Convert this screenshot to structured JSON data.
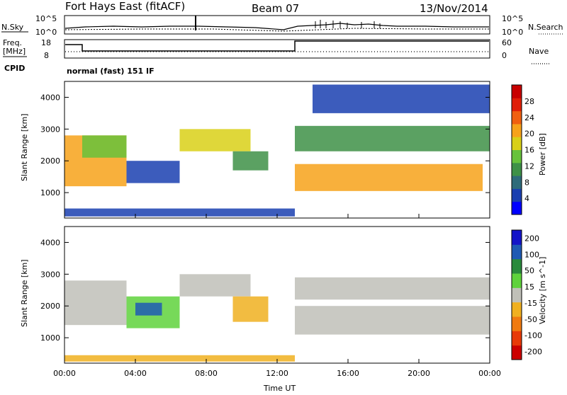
{
  "header": {
    "title": "Fort Hays East (fitACF)",
    "beam": "Beam 07",
    "date": "13/Nov/2014"
  },
  "top_panel": {
    "left_label": "N.Sky",
    "right_label": "N.Search",
    "left_ticks": [
      "10^5",
      "10^0"
    ],
    "right_ticks": [
      "10^5",
      "10^0"
    ]
  },
  "freq_panel": {
    "left_label_line1": "Freq.",
    "left_label_line2": "[MHz]",
    "left_ticks": [
      "18",
      "8"
    ],
    "right_label": "Nave",
    "right_ticks": [
      "60",
      "0"
    ]
  },
  "cpid": {
    "label": "CPID",
    "mode": "normal (fast) 151 IF"
  },
  "colors": {
    "power_scale": [
      "#0000ff",
      "#1a3fb0",
      "#2e6b7a",
      "#3e9147",
      "#67c23b",
      "#d9d018",
      "#f7a21a",
      "#f06010",
      "#e01f08",
      "#c80000"
    ],
    "velocity_scale": [
      "#1414c8",
      "#1e5ab4",
      "#2a8a3c",
      "#5fd23c",
      "#c0c0b8",
      "#f0b020",
      "#f07a10",
      "#e83a08",
      "#cc0000"
    ]
  },
  "chart_data": [
    {
      "type": "heatmap",
      "panel": "power",
      "ylabel": "Slant Range [km]",
      "yticks": [
        "1000",
        "2000",
        "3000",
        "4000"
      ],
      "ylim": [
        200,
        4500
      ],
      "xlim": [
        0,
        24
      ],
      "colorbar_label": "Power [dB]",
      "colorbar_ticks": [
        "4",
        "8",
        "12",
        "16",
        "20",
        "24",
        "28"
      ],
      "colorbar_range": [
        0,
        32
      ],
      "regions": [
        {
          "t0": 0.0,
          "t1": 3.5,
          "r0": 1200,
          "r1": 2800,
          "value": 22
        },
        {
          "t0": 1.0,
          "t1": 3.5,
          "r0": 2100,
          "r1": 2800,
          "value": 14
        },
        {
          "t0": 3.5,
          "t1": 6.5,
          "r0": 1300,
          "r1": 2000,
          "value": 6
        },
        {
          "t0": 6.5,
          "t1": 10.5,
          "r0": 2300,
          "r1": 3000,
          "value": 18
        },
        {
          "t0": 9.5,
          "t1": 11.5,
          "r0": 1700,
          "r1": 2300,
          "value": 10
        },
        {
          "t0": 13.0,
          "t1": 23.6,
          "r0": 1050,
          "r1": 1900,
          "value": 22
        },
        {
          "t0": 13.0,
          "t1": 24.0,
          "r0": 2300,
          "r1": 3100,
          "value": 12
        },
        {
          "t0": 14.0,
          "t1": 24.0,
          "r0": 3500,
          "r1": 4400,
          "value": 6
        },
        {
          "t0": 0.0,
          "t1": 13.0,
          "r0": 250,
          "r1": 500,
          "value": 5
        }
      ]
    },
    {
      "type": "heatmap",
      "panel": "velocity",
      "ylabel": "Slant Range [km]",
      "yticks": [
        "1000",
        "2000",
        "3000",
        "4000"
      ],
      "ylim": [
        200,
        4500
      ],
      "xlim": [
        0,
        24
      ],
      "xlabel": "Time UT",
      "xticks": [
        "00:00",
        "04:00",
        "08:00",
        "12:00",
        "16:00",
        "20:00",
        "00:00"
      ],
      "colorbar_label": "Velocity [m s^-1]",
      "colorbar_ticks": [
        "200",
        "100",
        "50",
        "15",
        "-15",
        "-50",
        "-100",
        "-200"
      ],
      "colorbar_range": [
        -250,
        250
      ],
      "regions": [
        {
          "t0": 0.0,
          "t1": 3.5,
          "r0": 1400,
          "r1": 2800,
          "value": 0
        },
        {
          "t0": 3.5,
          "t1": 6.5,
          "r0": 1300,
          "r1": 2300,
          "value": 80
        },
        {
          "t0": 4.0,
          "t1": 5.5,
          "r0": 1700,
          "r1": 2100,
          "value": 180
        },
        {
          "t0": 6.5,
          "t1": 10.5,
          "r0": 2300,
          "r1": 3000,
          "value": 0
        },
        {
          "t0": 9.5,
          "t1": 11.5,
          "r0": 1500,
          "r1": 2300,
          "value": -60
        },
        {
          "t0": 13.0,
          "t1": 24.0,
          "r0": 1100,
          "r1": 2000,
          "value": 0
        },
        {
          "t0": 13.0,
          "t1": 24.0,
          "r0": 2200,
          "r1": 2900,
          "value": 0
        },
        {
          "t0": 0.0,
          "t1": 13.0,
          "r0": 250,
          "r1": 450,
          "value": -60
        }
      ]
    }
  ]
}
